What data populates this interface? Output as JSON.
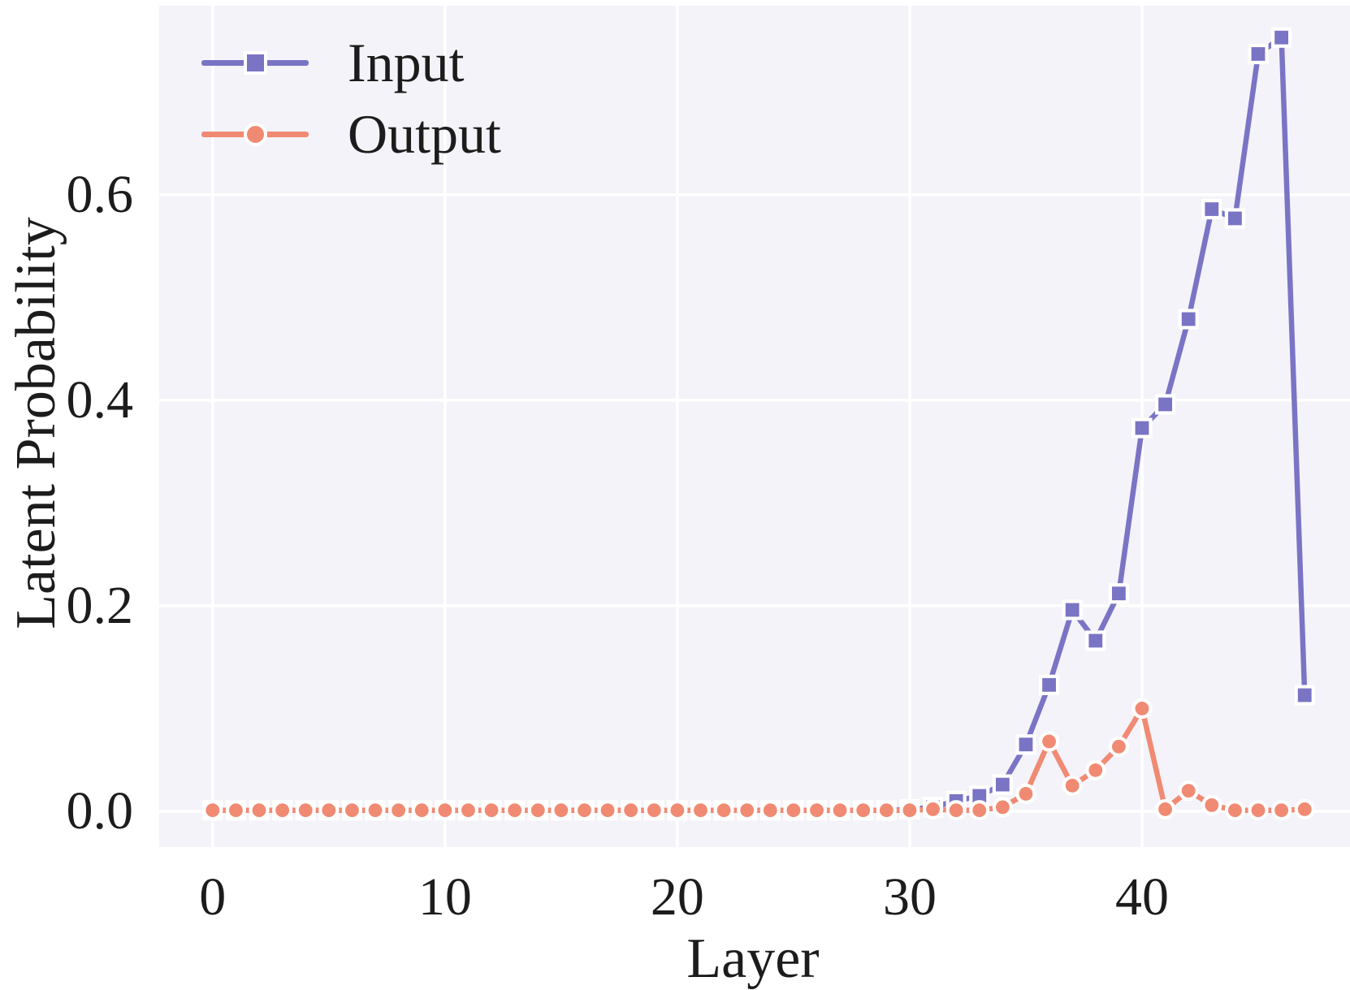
{
  "chart_data": {
    "type": "line",
    "title": "",
    "xlabel": "Layer",
    "ylabel": "Latent Probability",
    "x": [
      0,
      1,
      2,
      3,
      4,
      5,
      6,
      7,
      8,
      9,
      10,
      11,
      12,
      13,
      14,
      15,
      16,
      17,
      18,
      19,
      20,
      21,
      22,
      23,
      24,
      25,
      26,
      27,
      28,
      29,
      30,
      31,
      32,
      33,
      34,
      35,
      36,
      37,
      38,
      39,
      40,
      41,
      42,
      43,
      44,
      45,
      46,
      47
    ],
    "series": [
      {
        "name": "Input",
        "marker": "square",
        "color": "#7a74c5",
        "values": [
          0.001,
          0.001,
          0.001,
          0.001,
          0.001,
          0.001,
          0.001,
          0.001,
          0.001,
          0.001,
          0.001,
          0.001,
          0.001,
          0.001,
          0.001,
          0.001,
          0.001,
          0.001,
          0.001,
          0.001,
          0.001,
          0.001,
          0.001,
          0.001,
          0.001,
          0.001,
          0.001,
          0.001,
          0.001,
          0.001,
          0.002,
          0.004,
          0.01,
          0.015,
          0.026,
          0.065,
          0.123,
          0.196,
          0.166,
          0.212,
          0.373,
          0.396,
          0.479,
          0.586,
          0.577,
          0.737,
          0.753,
          0.113
        ]
      },
      {
        "name": "Output",
        "marker": "circle",
        "color": "#f08a73",
        "values": [
          0.001,
          0.001,
          0.001,
          0.001,
          0.001,
          0.001,
          0.001,
          0.001,
          0.001,
          0.001,
          0.001,
          0.001,
          0.001,
          0.001,
          0.001,
          0.001,
          0.001,
          0.001,
          0.001,
          0.001,
          0.001,
          0.001,
          0.001,
          0.001,
          0.001,
          0.001,
          0.001,
          0.001,
          0.001,
          0.001,
          0.001,
          0.002,
          0.001,
          0.001,
          0.004,
          0.017,
          0.068,
          0.025,
          0.04,
          0.063,
          0.1,
          0.002,
          0.02,
          0.006,
          0.001,
          0.001,
          0.001,
          0.002
        ]
      }
    ],
    "xticks": [
      0,
      10,
      20,
      30,
      40
    ],
    "yticks": [
      "0.0",
      "0.2",
      "0.4",
      "0.6"
    ],
    "ytick_values": [
      0.0,
      0.2,
      0.4,
      0.6
    ],
    "xlim": [
      -2.3,
      48.95
    ],
    "ylim": [
      -0.0348,
      0.784
    ],
    "grid": true,
    "legend_position": "upper left",
    "colors": {
      "plot_background": "#f4f3f9",
      "gridline": "#ffffff",
      "text": "#1c1c1c",
      "marker_edge": "#ffffff"
    }
  }
}
